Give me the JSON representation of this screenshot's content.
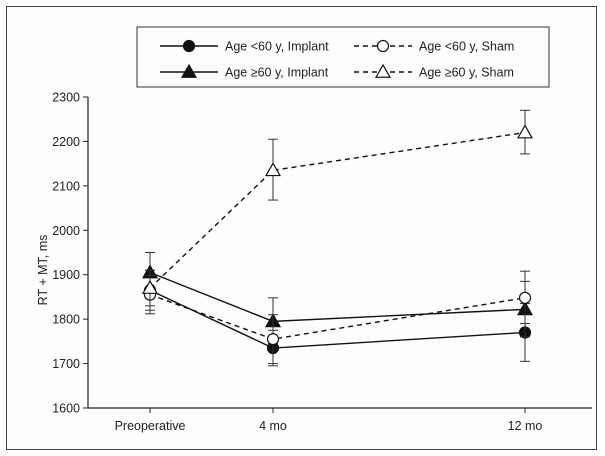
{
  "chart_data": {
    "type": "line",
    "title": "",
    "xlabel": "",
    "ylabel": "RT + MT, ms",
    "categories": [
      "Preoperative",
      "4 mo",
      "12 mo"
    ],
    "ylim": [
      1600,
      2300
    ],
    "yticks": [
      1600,
      1700,
      1800,
      1900,
      2000,
      2100,
      2200,
      2300
    ],
    "grid": false,
    "legend_position": "top",
    "series": [
      {
        "name": "Age <60 y, Implant",
        "marker": "filled-circle",
        "line": "solid",
        "values": [
          1865,
          1735,
          1770
        ],
        "error": [
          [
            1820,
            1910
          ],
          [
            1695,
            1775
          ],
          [
            1705,
            1835
          ]
        ]
      },
      {
        "name": "Age ≥60 y, Implant",
        "marker": "filled-triangle",
        "line": "solid",
        "values": [
          1905,
          1795,
          1822
        ],
        "error": [
          [
            1860,
            1950
          ],
          [
            1745,
            1848
          ],
          [
            1760,
            1885
          ]
        ]
      },
      {
        "name": "Age <60 y, Sham",
        "marker": "open-circle",
        "line": "dashed",
        "values": [
          1855,
          1755,
          1848
        ],
        "error": [
          [
            1812,
            1898
          ],
          [
            1700,
            1810
          ],
          [
            1790,
            1908
          ]
        ]
      },
      {
        "name": "Age ≥60 y, Sham",
        "marker": "open-triangle",
        "line": "dashed",
        "values": [
          1870,
          2135,
          2220
        ],
        "error": [
          [
            1830,
            1910
          ],
          [
            2068,
            2205
          ],
          [
            2172,
            2270
          ]
        ]
      }
    ]
  }
}
